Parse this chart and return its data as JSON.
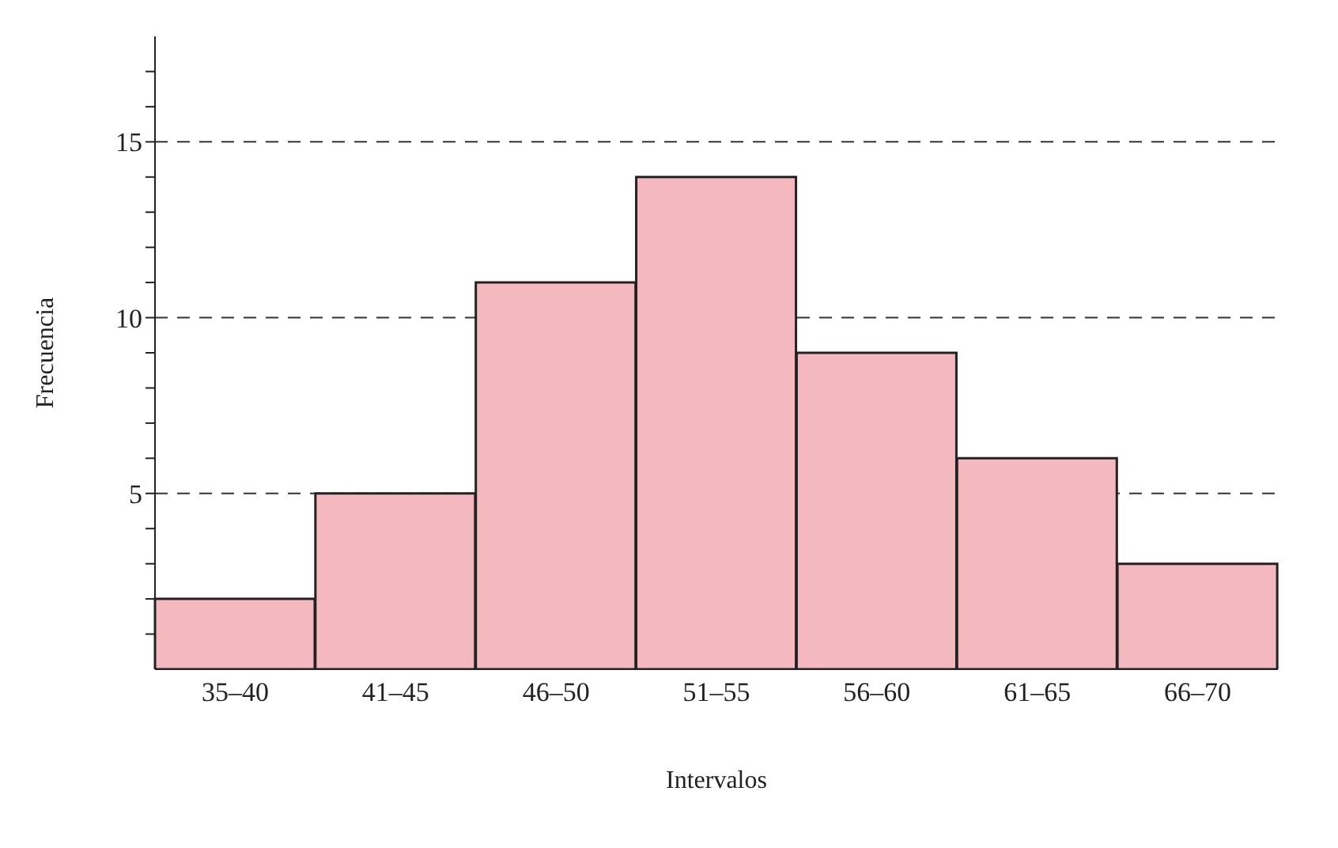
{
  "chart_data": {
    "type": "bar",
    "xlabel": "Intervalos",
    "ylabel": "Frecuencia",
    "categories": [
      "35–40",
      "41–45",
      "46–50",
      "51–55",
      "56–60",
      "61–65",
      "66–70"
    ],
    "values": [
      2,
      5,
      11,
      14,
      9,
      6,
      3
    ],
    "color": "#f4b9bf",
    "ylim": [
      0,
      18
    ],
    "yticks": [
      {
        "value": 1,
        "label": null
      },
      {
        "value": 2,
        "label": null
      },
      {
        "value": 3,
        "label": null
      },
      {
        "value": 4,
        "label": null
      },
      5,
      {
        "value": 6,
        "label": null
      },
      {
        "value": 7,
        "label": null
      },
      {
        "value": 8,
        "label": null
      },
      {
        "value": 9,
        "label": null
      },
      10,
      {
        "value": 11,
        "label": null
      },
      {
        "value": 12,
        "label": null
      },
      {
        "value": 13,
        "label": null
      },
      {
        "value": 14,
        "label": null
      },
      15,
      {
        "value": 16,
        "label": null
      },
      {
        "value": 17,
        "label": null
      }
    ],
    "grid": "y",
    "line_style": "dashed"
  }
}
